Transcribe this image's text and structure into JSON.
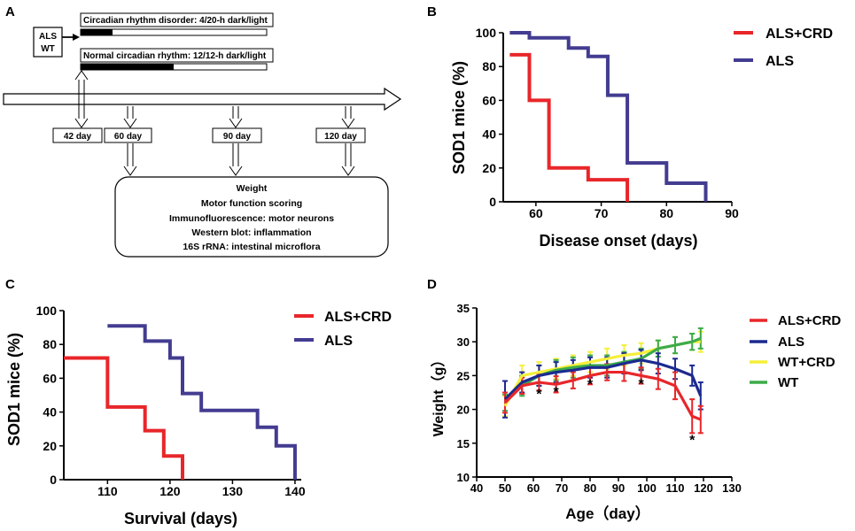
{
  "panel_a": {
    "label": "A",
    "group_labels": [
      "ALS",
      "WT"
    ],
    "crd_label": "Circadian rhythm disorder: 4/20-h dark/light",
    "normal_label": "Normal circadian rhythm: 12/12-h dark/light",
    "days": [
      "42 day",
      "60 day",
      "90 day",
      "120 day"
    ],
    "outcomes": [
      "Weight",
      "Motor function scoring",
      "Immunofluorescence: motor neurons",
      "Western blot: inflammation",
      "16S rRNA: intestinal microflora"
    ]
  },
  "colors": {
    "red": "#e8262a",
    "blue": "#433c91",
    "yellow": "#f5ef3b",
    "green": "#3cab4a"
  },
  "chart_data": [
    {
      "panel": "B",
      "type": "line",
      "step": true,
      "xlabel": "Disease onset (days)",
      "ylabel": "SOD1 mice (%)",
      "xlim": [
        55,
        90
      ],
      "ylim": [
        0,
        100
      ],
      "xticks": [
        "60",
        "70",
        "80",
        "90"
      ],
      "yticks": [
        "0",
        "20",
        "40",
        "60",
        "80",
        "100"
      ],
      "series": [
        {
          "name": "ALS+CRD",
          "color": "#e8262a",
          "x": [
            56,
            59,
            62,
            68,
            74
          ],
          "y": [
            87,
            60,
            20,
            13,
            0
          ]
        },
        {
          "name": "ALS",
          "color": "#433c91",
          "x": [
            56,
            59,
            65,
            68,
            71,
            74,
            80,
            86
          ],
          "y": [
            100,
            97,
            91,
            86,
            63,
            23,
            11,
            0
          ]
        }
      ]
    },
    {
      "panel": "C",
      "type": "line",
      "step": true,
      "xlabel": "Survival (days)",
      "ylabel": "SOD1 mice (%)",
      "xlim": [
        103,
        141
      ],
      "ylim": [
        0,
        100
      ],
      "xticks": [
        "110",
        "120",
        "130",
        "140"
      ],
      "yticks": [
        "0",
        "20",
        "40",
        "60",
        "80",
        "100"
      ],
      "series": [
        {
          "name": "ALS+CRD",
          "color": "#e8262a",
          "x": [
            103,
            110,
            116,
            119,
            122
          ],
          "y": [
            72,
            43,
            29,
            14,
            0
          ]
        },
        {
          "name": "ALS",
          "color": "#433c91",
          "x": [
            110,
            116,
            120,
            122,
            125,
            134,
            137,
            140
          ],
          "y": [
            91,
            82,
            72,
            51,
            41,
            31,
            20,
            0
          ]
        }
      ]
    },
    {
      "panel": "D",
      "type": "line",
      "xlabel": "Age（day）",
      "ylabel": "Weight（g）",
      "xlim": [
        40,
        130
      ],
      "ylim": [
        10,
        35
      ],
      "xticks": [
        "40",
        "50",
        "60",
        "70",
        "80",
        "90",
        "100",
        "110",
        "120",
        "130"
      ],
      "yticks": [
        "10",
        "15",
        "20",
        "25",
        "30",
        "35"
      ],
      "x": [
        50,
        56,
        62,
        68,
        74,
        80,
        86,
        92,
        98,
        104,
        110,
        116,
        119
      ],
      "series": [
        {
          "name": "ALS+CRD",
          "color": "#e8262a",
          "values": [
            21.0,
            23.5,
            24.0,
            23.7,
            24.3,
            25.0,
            25.5,
            25.5,
            25.0,
            24.5,
            23.5,
            19.0,
            18.5
          ],
          "err": [
            1.5,
            1.2,
            1.2,
            1.2,
            1.2,
            1.3,
            1.2,
            1.3,
            1.2,
            1.5,
            2.0,
            2.5,
            2.0
          ]
        },
        {
          "name": "ALS",
          "color": "#1c2a8f",
          "values": [
            21.5,
            24.0,
            25.0,
            25.5,
            25.8,
            26.2,
            26.2,
            26.8,
            27.3,
            26.8,
            26.0,
            25.0,
            22.0
          ],
          "err": [
            2.7,
            1.5,
            1.5,
            1.5,
            1.5,
            1.5,
            1.5,
            1.5,
            1.5,
            1.5,
            1.5,
            1.5,
            2.0
          ]
        },
        {
          "name": "WT+CRD",
          "color": "#f5ef3b",
          "values": [
            20.5,
            25.0,
            25.5,
            26.0,
            26.5,
            27.0,
            27.5,
            28.0,
            28.3,
            29.0,
            29.5,
            30.0,
            30.0
          ],
          "err": [
            1.5,
            1.5,
            1.5,
            1.5,
            1.5,
            1.5,
            1.5,
            1.5,
            1.5,
            1.2,
            1.2,
            1.2,
            1.5
          ]
        },
        {
          "name": "WT",
          "color": "#3cab4a",
          "values": [
            21.0,
            23.5,
            25.0,
            25.8,
            26.2,
            26.5,
            26.5,
            27.0,
            27.5,
            29.0,
            29.5,
            30.0,
            30.5
          ],
          "err": [
            1.2,
            1.5,
            1.5,
            1.5,
            1.5,
            1.5,
            1.5,
            1.5,
            1.5,
            1.2,
            1.2,
            1.2,
            1.5
          ]
        }
      ],
      "annotations": [
        {
          "text": "*",
          "x": 62,
          "y": 21.6
        },
        {
          "text": "*",
          "x": 68,
          "y": 21.9
        },
        {
          "text": "*",
          "x": 80,
          "y": 23.0
        },
        {
          "text": "*",
          "x": 98,
          "y": 23.1
        },
        {
          "text": "*",
          "x": 116,
          "y": 14.8
        }
      ]
    }
  ]
}
